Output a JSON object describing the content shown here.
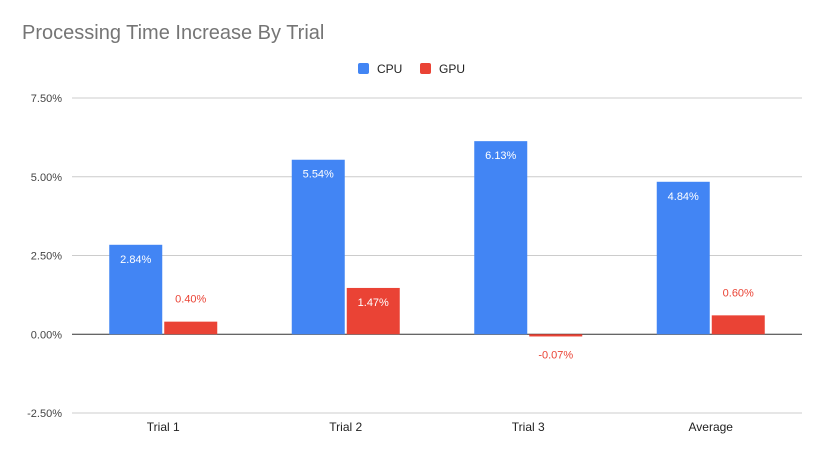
{
  "chart_data": {
    "type": "bar",
    "title": "Processing Time Increase By Trial",
    "categories": [
      "Trial 1",
      "Trial 2",
      "Trial 3",
      "Average"
    ],
    "series": [
      {
        "name": "CPU",
        "color": "#4285f4",
        "values": [
          2.84,
          5.54,
          6.13,
          4.84
        ],
        "labels": [
          "2.84%",
          "5.54%",
          "6.13%",
          "4.84%"
        ],
        "label_color": "#ffffff"
      },
      {
        "name": "GPU",
        "color": "#ea4335",
        "values": [
          0.4,
          1.47,
          -0.07,
          0.6
        ],
        "labels": [
          "0.40%",
          "1.47%",
          "-0.07%",
          "0.60%"
        ],
        "label_color": "#ea4335"
      }
    ],
    "ylim": [
      -2.5,
      7.5
    ],
    "yticks": [
      -2.5,
      0,
      2.5,
      5,
      7.5
    ],
    "ytick_labels": [
      "-2.50%",
      "0.00%",
      "2.50%",
      "5.00%",
      "7.50%"
    ],
    "xlabel": "",
    "ylabel": "",
    "grid": true,
    "legend_position": "top-center"
  }
}
